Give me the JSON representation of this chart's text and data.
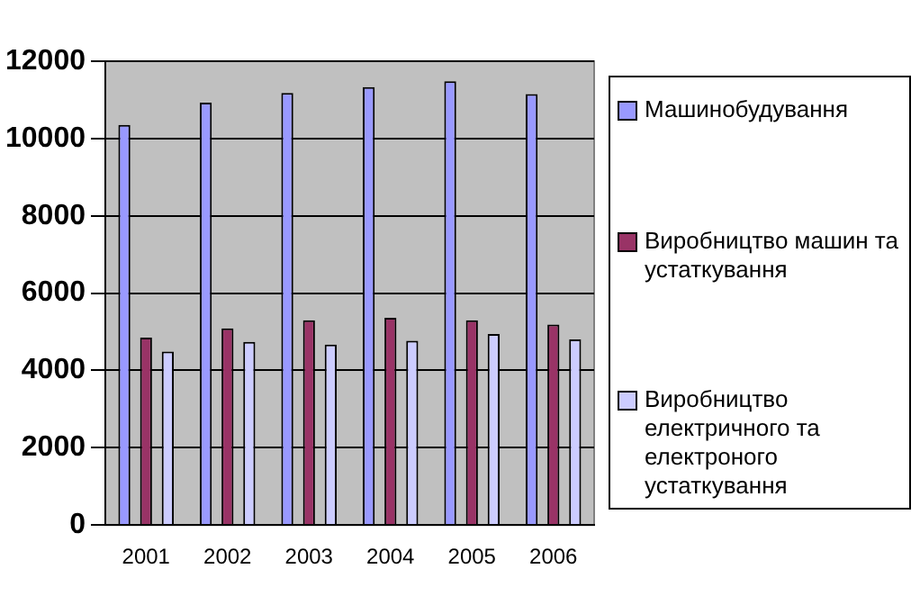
{
  "chart_data": {
    "type": "bar",
    "categories": [
      "2001",
      "2002",
      "2003",
      "2004",
      "2005",
      "2006"
    ],
    "series": [
      {
        "name": "Машинобудування",
        "color": "#9999ff",
        "values": [
          10350,
          10930,
          11180,
          11330,
          11480,
          11150
        ]
      },
      {
        "name": "Виробництво машин та устаткування",
        "color": "#993366",
        "values": [
          4850,
          5090,
          5300,
          5360,
          5300,
          5190
        ]
      },
      {
        "name": "Виробництво електричного та електроного устаткування",
        "color": "#ccccff",
        "values": [
          4490,
          4740,
          4670,
          4770,
          4940,
          4800
        ]
      }
    ],
    "ylim": [
      0,
      12000
    ],
    "yticks": [
      0,
      2000,
      4000,
      6000,
      8000,
      10000,
      12000
    ],
    "grid": "y",
    "legend": "right"
  }
}
